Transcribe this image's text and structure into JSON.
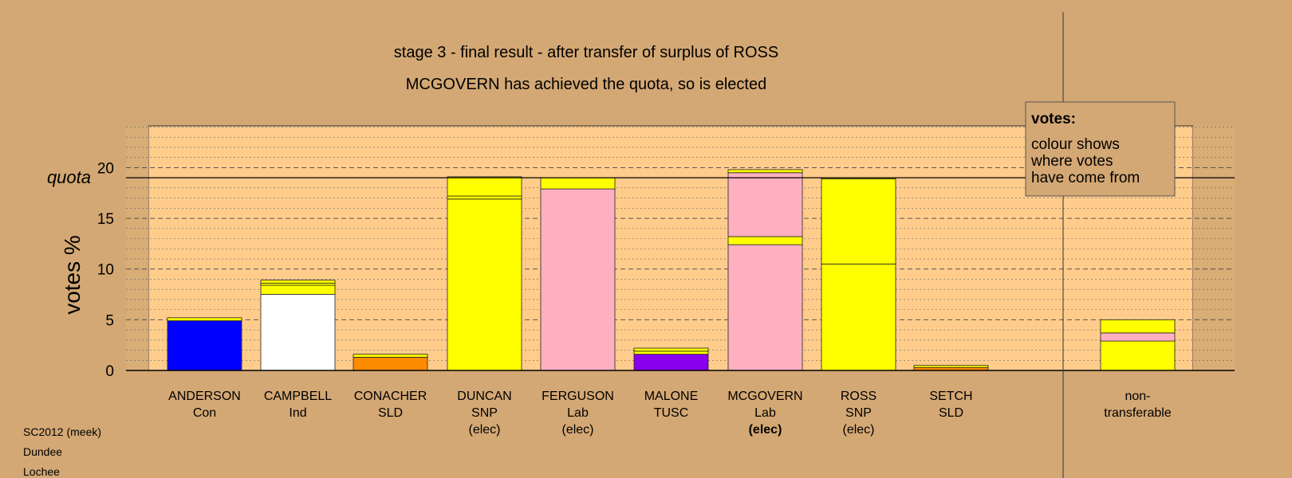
{
  "chart_data": {
    "type": "bar",
    "stacked": true,
    "title": "stage 3 - final result - after transfer of surplus of ROSS",
    "subtitle": "MCGOVERN has achieved the quota, so is elected",
    "ylabel": "votes %",
    "quota_label": "quota",
    "quota": 19,
    "ylim": [
      0,
      24
    ],
    "yticks": [
      0,
      5,
      10,
      15,
      20
    ],
    "grid": true,
    "legend": {
      "title": "votes:",
      "lines": [
        "colour shows",
        "where votes",
        "have come from"
      ],
      "placement": "top-right"
    },
    "bars": [
      {
        "name": "ANDERSON",
        "party": "Con",
        "status": "",
        "segments": [
          {
            "value": 4.9,
            "color": "#0000ff"
          },
          {
            "value": 0.3,
            "color": "#ffff00"
          }
        ]
      },
      {
        "name": "CAMPBELL",
        "party": "Ind",
        "status": "",
        "segments": [
          {
            "value": 7.5,
            "color": "#ffffff"
          },
          {
            "value": 0.9,
            "color": "#ffff00"
          },
          {
            "value": 0.2,
            "color": "#ffff00"
          },
          {
            "value": 0.3,
            "color": "#ffff00"
          }
        ]
      },
      {
        "name": "CONACHER",
        "party": "SLD",
        "status": "",
        "segments": [
          {
            "value": 1.3,
            "color": "#ff8c00"
          },
          {
            "value": 0.3,
            "color": "#ffff00"
          }
        ]
      },
      {
        "name": "DUNCAN",
        "party": "SNP",
        "status": "(elec)",
        "segments": [
          {
            "value": 16.9,
            "color": "#ffff00"
          },
          {
            "value": 0.3,
            "color": "#ffff00"
          },
          {
            "value": 1.9,
            "color": "#ffff00"
          }
        ]
      },
      {
        "name": "FERGUSON",
        "party": "Lab",
        "status": "(elec)",
        "segments": [
          {
            "value": 17.9,
            "color": "#ffb0c0"
          },
          {
            "value": 1.1,
            "color": "#ffff00"
          }
        ]
      },
      {
        "name": "MALONE",
        "party": "TUSC",
        "status": "",
        "segments": [
          {
            "value": 1.6,
            "color": "#8800ee"
          },
          {
            "value": 0.3,
            "color": "#ffff00"
          },
          {
            "value": 0.3,
            "color": "#ffff00"
          }
        ]
      },
      {
        "name": "MCGOVERN",
        "party": "Lab",
        "status": "(elec)",
        "status_bold": true,
        "segments": [
          {
            "value": 12.4,
            "color": "#ffb0c0"
          },
          {
            "value": 0.8,
            "color": "#ffff00"
          },
          {
            "value": 6.3,
            "color": "#ffb0c0"
          },
          {
            "value": 0.3,
            "color": "#ffff00"
          }
        ]
      },
      {
        "name": "ROSS",
        "party": "SNP",
        "status": "(elec)",
        "segments": [
          {
            "value": 10.5,
            "color": "#ffff00"
          },
          {
            "value": 8.4,
            "color": "#ffff00"
          },
          {
            "value": 0.1,
            "color": "#ffff00"
          }
        ]
      },
      {
        "name": "SETCH",
        "party": "SLD",
        "status": "",
        "segments": [
          {
            "value": 0.3,
            "color": "#ff8c00"
          },
          {
            "value": 0.2,
            "color": "#ffff00"
          }
        ]
      }
    ],
    "nontransferable": {
      "label_lines": [
        "non-",
        "transferable"
      ],
      "segments": [
        {
          "value": 2.9,
          "color": "#ffff00"
        },
        {
          "value": 0.8,
          "color": "#ffb0c0"
        },
        {
          "value": 1.3,
          "color": "#ffff00"
        }
      ]
    }
  },
  "footer": {
    "line1": "SC2012 (meek)",
    "line2": "Dundee",
    "line3": "Lochee"
  },
  "colors": {
    "background": "#d4a874",
    "plot_background": "#ffcc8c",
    "side_shade": "#d9ad76"
  }
}
